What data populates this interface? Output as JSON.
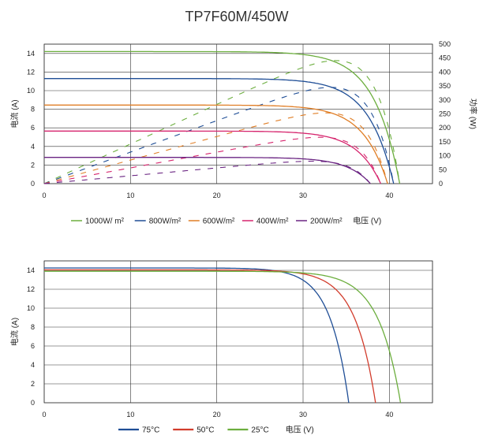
{
  "title": "TP7F60M/450W",
  "chart_data": [
    {
      "type": "line",
      "title": "TP7F60M/450W",
      "xlabel": "电压 (V)",
      "ylabel": "电流 (A)",
      "y2label": "功率 (W)",
      "xlim": [
        0,
        45
      ],
      "ylim": [
        0,
        15
      ],
      "y2lim": [
        0,
        500
      ],
      "x_ticks": [
        0,
        10,
        20,
        30,
        40
      ],
      "y_ticks": [
        0,
        2,
        4,
        6,
        8,
        10,
        12,
        14
      ],
      "y2_ticks": [
        0,
        50,
        100,
        150,
        200,
        250,
        300,
        350,
        400,
        450,
        500
      ],
      "grid": true,
      "legend_position": "bottom",
      "series": [
        {
          "name": "1000W/ m²",
          "color": "#6cae3e",
          "isc": 14.2,
          "voc": 41.2,
          "vmp": 34.5,
          "pmax": 452
        },
        {
          "name": "800W/m²",
          "color": "#1f4e96",
          "isc": 11.3,
          "voc": 40.5,
          "vmp": 34.0,
          "pmax": 360
        },
        {
          "name": "600W/m²",
          "color": "#e07e26",
          "isc": 8.45,
          "voc": 39.8,
          "vmp": 33.5,
          "pmax": 268
        },
        {
          "name": "400W/m²",
          "color": "#d6246d",
          "isc": 5.65,
          "voc": 39.0,
          "vmp": 32.8,
          "pmax": 177
        },
        {
          "name": "200W/m²",
          "color": "#6a2482",
          "isc": 2.82,
          "voc": 37.8,
          "vmp": 31.5,
          "pmax": 84
        }
      ]
    },
    {
      "type": "line",
      "xlabel": "电压 (V)",
      "ylabel": "电流 (A)",
      "xlim": [
        0,
        45
      ],
      "ylim": [
        0,
        15
      ],
      "x_ticks": [
        0,
        10,
        20,
        30,
        40
      ],
      "y_ticks": [
        0,
        2,
        4,
        6,
        8,
        10,
        12,
        14
      ],
      "grid": true,
      "legend_position": "bottom",
      "series": [
        {
          "name": "75°C",
          "color": "#1f4e96",
          "isc": 14.25,
          "voc": 35.3
        },
        {
          "name": "50°C",
          "color": "#d23c2c",
          "isc": 14.05,
          "voc": 38.4
        },
        {
          "name": "25°C",
          "color": "#6cae3e",
          "isc": 13.9,
          "voc": 41.3
        }
      ]
    }
  ]
}
